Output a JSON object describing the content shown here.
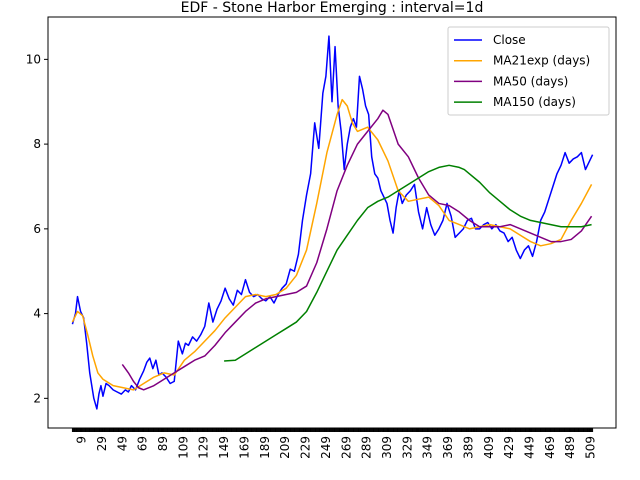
{
  "chart_data": {
    "type": "line",
    "title": "EDF - Stone Harbor Emerging : interval=1d",
    "xlabel": "",
    "ylabel": "",
    "xlim": [
      -24,
      534
    ],
    "ylim": [
      1.3,
      11.0
    ],
    "x_ticks": [
      9,
      29,
      49,
      69,
      89,
      109,
      129,
      149,
      169,
      189,
      209,
      229,
      249,
      269,
      289,
      309,
      329,
      349,
      369,
      389,
      409,
      429,
      449,
      469,
      489,
      509
    ],
    "y_ticks": [
      2,
      4,
      6,
      8,
      10
    ],
    "grid": false,
    "legend_position": "top-right",
    "series": [
      {
        "name": "Close",
        "color": "#0000ff",
        "x": [
          0,
          3,
          5,
          8,
          11,
          14,
          17,
          21,
          24,
          26,
          28,
          30,
          33,
          36,
          40,
          44,
          48,
          52,
          55,
          58,
          62,
          66,
          70,
          73,
          76,
          79,
          82,
          85,
          88,
          92,
          96,
          100,
          104,
          108,
          111,
          114,
          118,
          122,
          126,
          130,
          134,
          138,
          142,
          146,
          150,
          154,
          158,
          162,
          166,
          170,
          174,
          178,
          182,
          186,
          190,
          194,
          198,
          202,
          206,
          210,
          214,
          218,
          222,
          226,
          230,
          234,
          238,
          242,
          246,
          249,
          252,
          255,
          258,
          261,
          264,
          267,
          270,
          273,
          276,
          279,
          282,
          285,
          288,
          291,
          294,
          297,
          300,
          303,
          306,
          309,
          312,
          315,
          318,
          321,
          324,
          328,
          332,
          336,
          340,
          344,
          348,
          352,
          356,
          360,
          364,
          368,
          372,
          376,
          380,
          384,
          388,
          392,
          396,
          400,
          404,
          408,
          412,
          416,
          420,
          424,
          428,
          432,
          436,
          440,
          444,
          448,
          452,
          456,
          460,
          464,
          468,
          472,
          476,
          480,
          484,
          488,
          492,
          496,
          500,
          504,
          508,
          511
        ],
        "values": [
          3.75,
          4.0,
          4.4,
          4.05,
          3.9,
          3.3,
          2.6,
          2.0,
          1.75,
          2.1,
          2.3,
          2.05,
          2.35,
          2.3,
          2.2,
          2.15,
          2.1,
          2.2,
          2.15,
          2.3,
          2.2,
          2.45,
          2.65,
          2.85,
          2.95,
          2.7,
          2.9,
          2.55,
          2.6,
          2.5,
          2.35,
          2.4,
          3.35,
          3.05,
          3.3,
          3.25,
          3.45,
          3.35,
          3.5,
          3.7,
          4.25,
          3.8,
          4.1,
          4.3,
          4.6,
          4.35,
          4.2,
          4.55,
          4.45,
          4.8,
          4.5,
          4.4,
          4.45,
          4.35,
          4.3,
          4.4,
          4.25,
          4.45,
          4.6,
          4.7,
          5.05,
          5.0,
          5.4,
          6.2,
          6.8,
          7.3,
          8.5,
          7.9,
          9.2,
          9.6,
          10.55,
          9.0,
          10.3,
          8.9,
          8.3,
          7.4,
          8.0,
          8.4,
          8.6,
          8.4,
          9.6,
          9.3,
          8.9,
          8.7,
          7.7,
          7.3,
          7.2,
          6.9,
          6.75,
          6.6,
          6.2,
          5.9,
          6.5,
          6.9,
          6.6,
          6.8,
          6.9,
          7.05,
          6.4,
          6.0,
          6.5,
          6.1,
          5.85,
          6.0,
          6.2,
          6.6,
          6.3,
          5.8,
          5.9,
          6.0,
          6.2,
          6.25,
          6.0,
          6.0,
          6.1,
          6.15,
          6.0,
          6.1,
          5.95,
          5.9,
          5.7,
          5.8,
          5.5,
          5.3,
          5.5,
          5.6,
          5.35,
          5.7,
          6.2,
          6.4,
          6.7,
          7.0,
          7.3,
          7.5,
          7.8,
          7.55,
          7.65,
          7.7,
          7.8,
          7.4,
          7.6,
          7.75
        ]
      },
      {
        "name": "MA21exp (days)",
        "color": "#ffa500",
        "x": [
          0,
          5,
          10,
          15,
          20,
          25,
          30,
          40,
          50,
          60,
          70,
          80,
          90,
          100,
          110,
          120,
          130,
          140,
          150,
          160,
          170,
          180,
          190,
          200,
          210,
          220,
          230,
          240,
          250,
          260,
          265,
          270,
          275,
          280,
          290,
          300,
          310,
          320,
          330,
          340,
          350,
          360,
          370,
          380,
          390,
          400,
          410,
          420,
          430,
          440,
          450,
          460,
          470,
          480,
          490,
          500,
          510
        ],
        "values": [
          3.8,
          4.05,
          3.95,
          3.5,
          3.0,
          2.6,
          2.45,
          2.3,
          2.25,
          2.2,
          2.35,
          2.5,
          2.6,
          2.55,
          2.9,
          3.1,
          3.35,
          3.6,
          3.9,
          4.15,
          4.4,
          4.45,
          4.4,
          4.45,
          4.6,
          4.9,
          5.5,
          6.6,
          7.8,
          8.7,
          9.05,
          8.9,
          8.5,
          8.3,
          8.4,
          8.1,
          7.6,
          6.9,
          6.65,
          6.7,
          6.75,
          6.55,
          6.2,
          6.1,
          6.0,
          6.05,
          6.1,
          6.05,
          6.0,
          5.85,
          5.7,
          5.6,
          5.65,
          5.75,
          6.2,
          6.6,
          7.05
        ]
      },
      {
        "name": "MA50 (days)",
        "color": "#800080",
        "x": [
          49,
          55,
          60,
          65,
          70,
          80,
          90,
          100,
          110,
          120,
          130,
          140,
          150,
          160,
          170,
          180,
          190,
          200,
          210,
          220,
          230,
          240,
          250,
          260,
          270,
          280,
          290,
          300,
          305,
          310,
          320,
          330,
          340,
          350,
          360,
          370,
          380,
          390,
          400,
          410,
          420,
          430,
          440,
          450,
          460,
          470,
          480,
          490,
          500,
          510
        ],
        "values": [
          2.8,
          2.6,
          2.4,
          2.25,
          2.2,
          2.3,
          2.45,
          2.6,
          2.75,
          2.9,
          3.0,
          3.25,
          3.55,
          3.8,
          4.05,
          4.25,
          4.35,
          4.4,
          4.45,
          4.5,
          4.65,
          5.2,
          6.0,
          6.9,
          7.5,
          8.0,
          8.3,
          8.6,
          8.8,
          8.7,
          8.0,
          7.7,
          7.2,
          6.8,
          6.6,
          6.55,
          6.4,
          6.2,
          6.05,
          6.05,
          6.05,
          6.1,
          6.0,
          5.9,
          5.8,
          5.7,
          5.7,
          5.75,
          5.95,
          6.3
        ]
      },
      {
        "name": "MA150 (days)",
        "color": "#008000",
        "x": [
          149,
          160,
          170,
          180,
          190,
          200,
          210,
          220,
          230,
          240,
          250,
          260,
          270,
          280,
          290,
          300,
          310,
          320,
          330,
          340,
          350,
          360,
          370,
          380,
          385,
          390,
          400,
          410,
          420,
          430,
          440,
          450,
          460,
          470,
          480,
          490,
          500,
          510
        ],
        "values": [
          2.88,
          2.9,
          3.05,
          3.2,
          3.35,
          3.5,
          3.65,
          3.8,
          4.05,
          4.5,
          5.0,
          5.5,
          5.85,
          6.2,
          6.5,
          6.65,
          6.75,
          6.9,
          7.05,
          7.2,
          7.35,
          7.45,
          7.5,
          7.45,
          7.4,
          7.3,
          7.1,
          6.85,
          6.65,
          6.45,
          6.3,
          6.2,
          6.15,
          6.1,
          6.05,
          6.05,
          6.05,
          6.1
        ]
      }
    ]
  }
}
